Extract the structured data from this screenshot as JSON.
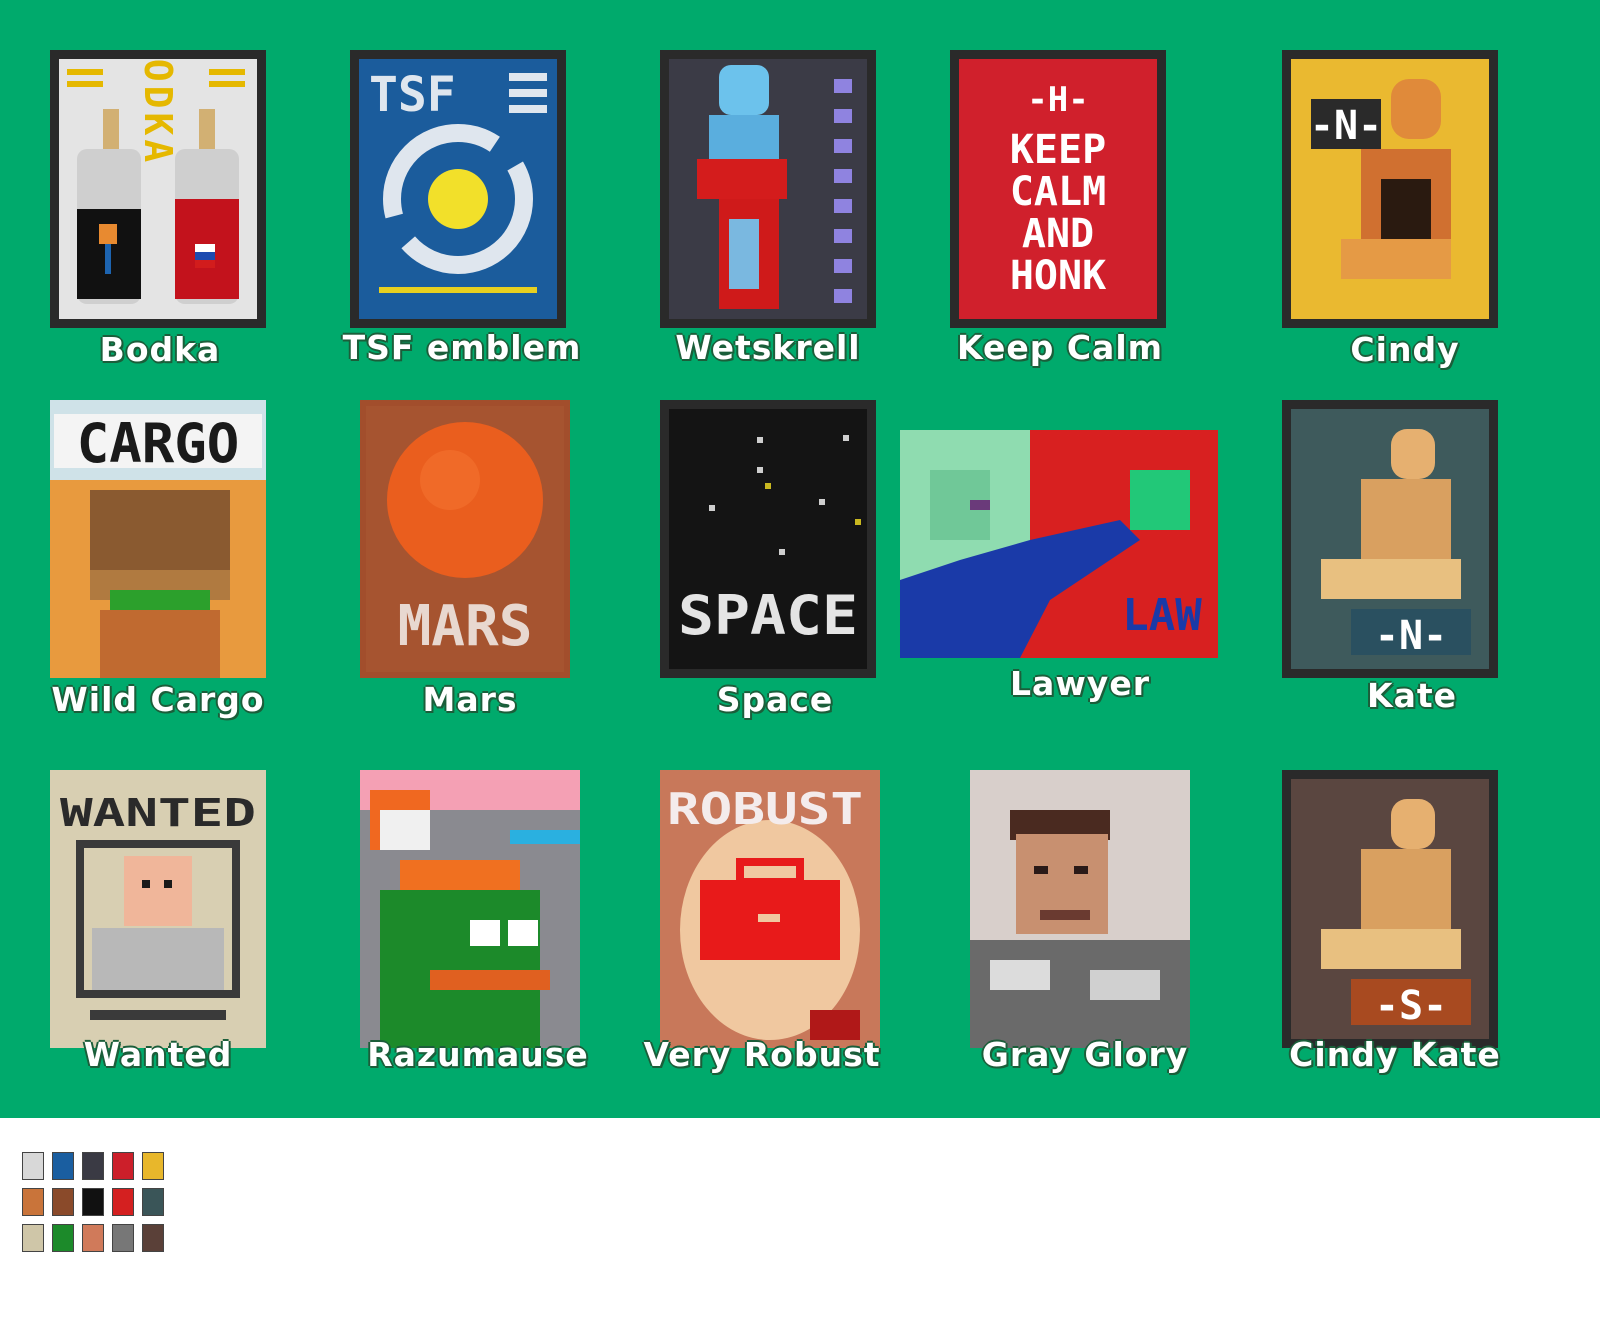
{
  "posters": [
    {
      "label": "Bodka",
      "text": "VODKA"
    },
    {
      "label": "TSF emblem",
      "text": "TSF"
    },
    {
      "label": "Wetskrell",
      "text": ""
    },
    {
      "label": "Keep Calm",
      "text": "-H-",
      "lines": [
        "KEEP",
        "CALM",
        "AND",
        "HONK"
      ]
    },
    {
      "label": "Cindy",
      "text": "-N-"
    },
    {
      "label": "Wild Cargo",
      "text": "CARGO"
    },
    {
      "label": "Mars",
      "text": "MARS"
    },
    {
      "label": "Space",
      "text": "SPACE"
    },
    {
      "label": "Lawyer",
      "text": "LAW"
    },
    {
      "label": "Kate",
      "text": "-N-"
    },
    {
      "label": "Wanted",
      "text": "WANTED"
    },
    {
      "label": "Razumause",
      "text": ""
    },
    {
      "label": "Very Robust",
      "text": "ROBUST"
    },
    {
      "label": "Gray Glory",
      "text": ""
    },
    {
      "label": "Cindy Kate",
      "text": "-S-"
    }
  ],
  "colors": {
    "background": "#00aa6c",
    "frame": "#2a2a2a"
  },
  "thumb_colors": [
    "#d8d8d8",
    "#1a5ea0",
    "#3a3a44",
    "#cc1f2a",
    "#e8b72b",
    "#c9743a",
    "#8a4a2a",
    "#111111",
    "#d42020",
    "#3a5558",
    "#cfc6a8",
    "#1c8a2a",
    "#d07a5a",
    "#777777",
    "#5a4038"
  ]
}
